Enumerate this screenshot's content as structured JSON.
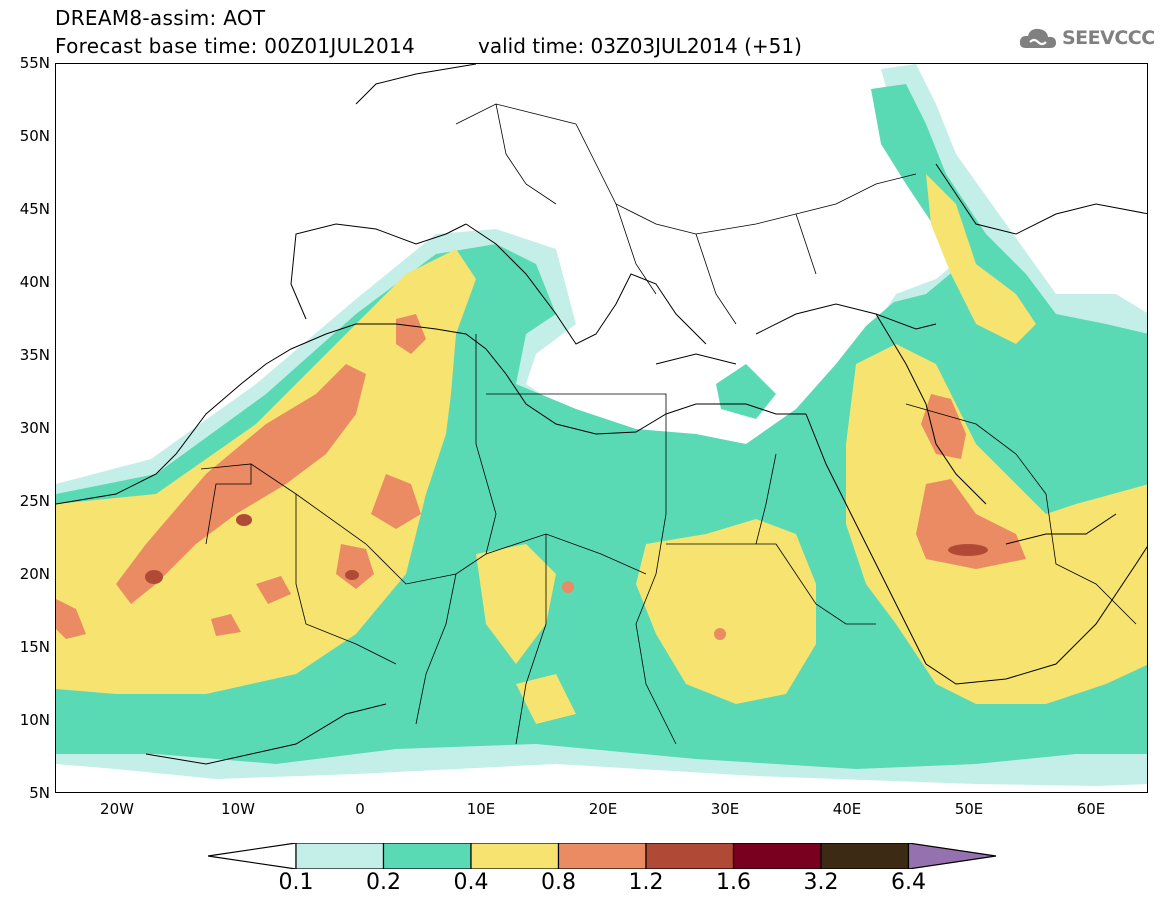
{
  "header": {
    "title": "DREAM8-assim: AOT",
    "forecast_base": "Forecast base time: 00Z01JUL2014",
    "valid_time": "valid time: 03Z03JUL2014 (+51)"
  },
  "logo": {
    "text": "SEEVCCC",
    "icon": "cloud-icon",
    "color": "#808080"
  },
  "map": {
    "lat_labels": [
      "55N",
      "50N",
      "45N",
      "40N",
      "35N",
      "30N",
      "25N",
      "20N",
      "15N",
      "10N",
      "5N"
    ],
    "lon_labels": [
      "20W",
      "10W",
      "0",
      "10E",
      "20E",
      "30E",
      "40E",
      "50E",
      "60E"
    ]
  },
  "colorbar": {
    "labels": [
      "0.1",
      "0.2",
      "0.4",
      "0.8",
      "1.2",
      "1.6",
      "3.2",
      "6.4"
    ],
    "colors": [
      "#ffffff",
      "#c4efe8",
      "#5ad9b5",
      "#f7e36f",
      "#ea8b63",
      "#b04a36",
      "#7a0020",
      "#3d2a14",
      "#9671b0"
    ]
  }
}
